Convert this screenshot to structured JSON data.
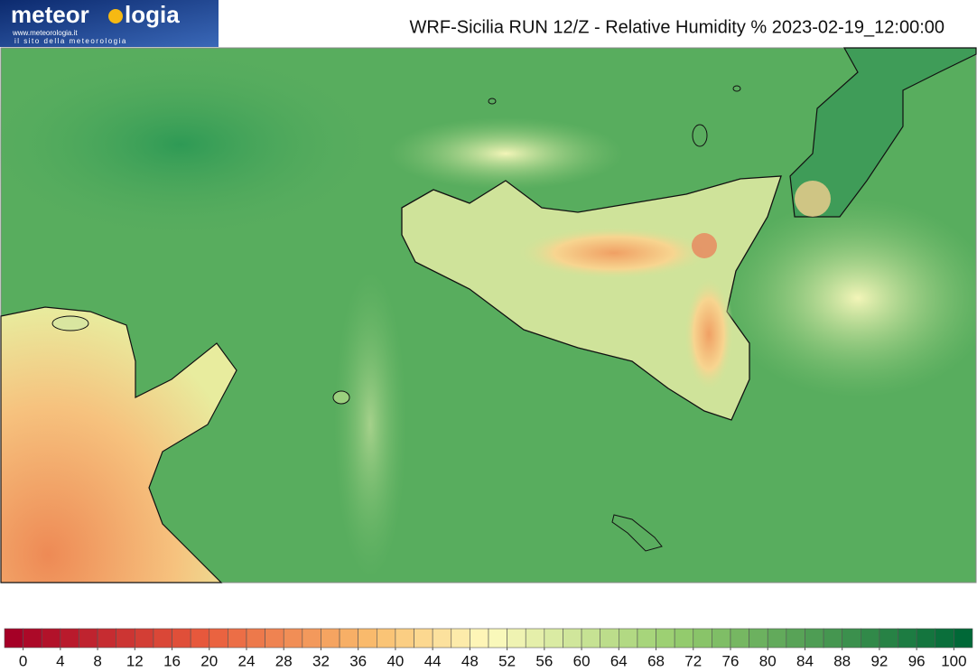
{
  "logo": {
    "name_start": "meteor",
    "name_end": "logia",
    "url": "www.meteorologia.it",
    "tagline": "il sito della meteorologia"
  },
  "title": "WRF-Sicilia RUN 12/Z - Relative Humidity % 2023-02-19_12:00:00",
  "colorbar": {
    "ticks": [
      0,
      4,
      8,
      12,
      16,
      20,
      24,
      28,
      32,
      36,
      40,
      44,
      48,
      52,
      56,
      60,
      64,
      68,
      72,
      76,
      80,
      84,
      88,
      92,
      96,
      100
    ]
  }
}
